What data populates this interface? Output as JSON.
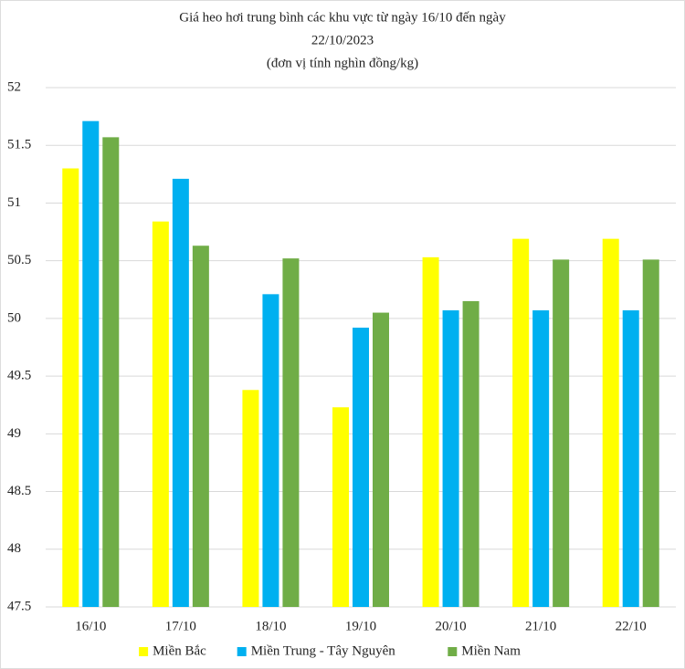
{
  "chart_data": {
    "type": "bar",
    "title": [
      "Giá heo hơi trung bình các khu vực từ ngày 16/10 đến ngày",
      "22/10/2023",
      "(đơn vị tính nghìn đồng/kg)"
    ],
    "categories": [
      "16/10",
      "17/10",
      "18/10",
      "19/10",
      "20/10",
      "21/10",
      "22/10"
    ],
    "series": [
      {
        "name": "Miền Bắc",
        "color": "#ffff00",
        "values": [
          51.3,
          50.84,
          49.38,
          49.23,
          50.53,
          50.69,
          50.69
        ]
      },
      {
        "name": "Miền Trung - Tây Nguyên",
        "color": "#00b0f0",
        "values": [
          51.71,
          51.21,
          50.21,
          49.92,
          50.07,
          50.07,
          50.07
        ]
      },
      {
        "name": "Miền Nam",
        "color": "#70ad47",
        "values": [
          51.57,
          50.63,
          50.52,
          50.05,
          50.15,
          50.51,
          50.51
        ]
      }
    ],
    "ylim": [
      47.5,
      52
    ],
    "yticks": [
      47.5,
      48,
      48.5,
      49,
      49.5,
      50,
      50.5,
      51,
      51.5,
      52
    ],
    "grid": true,
    "legend": "bottom"
  }
}
